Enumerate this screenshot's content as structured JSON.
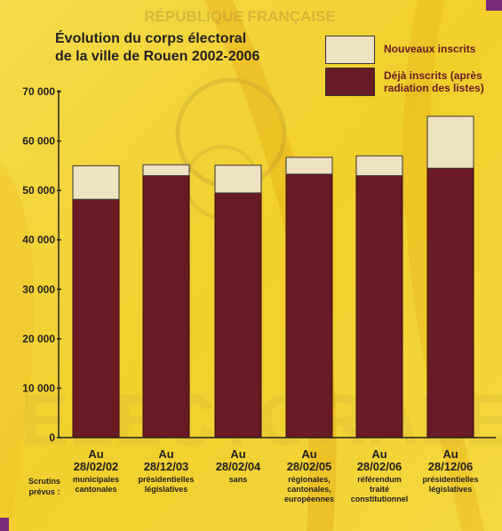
{
  "colors": {
    "background": "#f4d63a",
    "base_series": "#6a1a24",
    "new_series": "#ede3c3",
    "axis": "#222222"
  },
  "watermark": {
    "top_text": "RÉPUBLIQUE FRANÇAISE",
    "bottom_text": "ELECTORALE"
  },
  "chart_data": {
    "type": "bar",
    "stacked": true,
    "title_line1": "Évolution du corps électoral",
    "title_line2": "de la ville de Rouen 2002-2006",
    "categories": [
      {
        "line1": "Au",
        "line2": "28/02/02",
        "notes": [
          "municipales",
          "cantonales"
        ]
      },
      {
        "line1": "Au",
        "line2": "28/12/03",
        "notes": [
          "présidentielles",
          "législatives"
        ]
      },
      {
        "line1": "Au",
        "line2": "28/02/04",
        "notes": [
          "sans"
        ]
      },
      {
        "line1": "Au",
        "line2": "28/02/05",
        "notes": [
          "régionales,",
          "cantonales,",
          "européennes"
        ]
      },
      {
        "line1": "Au",
        "line2": "28/02/06",
        "notes": [
          "référendum",
          "traité",
          "constitutionnel"
        ]
      },
      {
        "line1": "Au",
        "line2": "28/12/06",
        "notes": [
          "présidentielles",
          "législatives"
        ]
      }
    ],
    "series": [
      {
        "name": "Déjà inscrits (après radiation des listes)",
        "values": [
          48200,
          53000,
          49500,
          53300,
          53000,
          54500
        ]
      },
      {
        "name": "Nouveaux inscrits",
        "values": [
          6800,
          2200,
          5600,
          3400,
          4000,
          10500
        ]
      }
    ],
    "legend": {
      "new_label": "Nouveaux inscrits",
      "base_label_line1": "Déjà inscrits (après",
      "base_label_line2": "radiation des listes)",
      "position": "top-right"
    },
    "ylim": [
      0,
      70000
    ],
    "yticks": [
      "0",
      "10 000",
      "20 000",
      "30 000",
      "40 000",
      "50 000",
      "60 000",
      "70 000"
    ],
    "scrutins_label_line1": "Scrutins",
    "scrutins_label_line2": "prévus :"
  }
}
